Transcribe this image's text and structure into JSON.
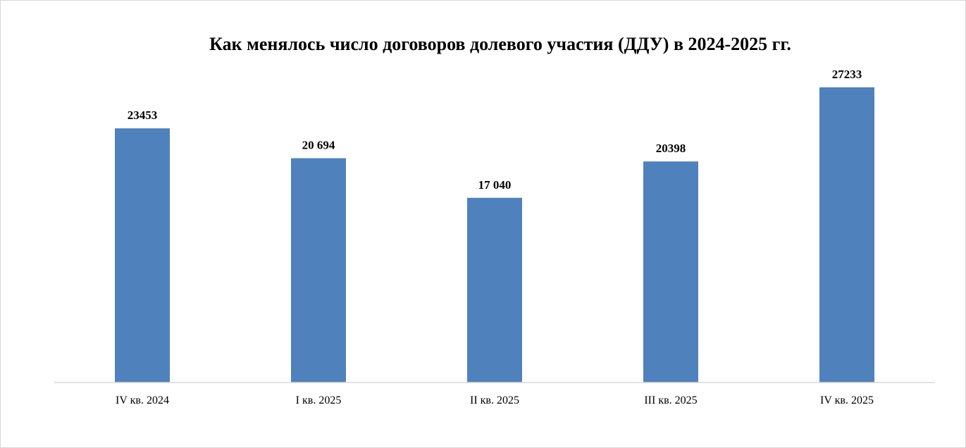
{
  "chart_data": {
    "type": "bar",
    "title": "Как менялось число договоров долевого участия (ДДУ) в 2024-2025 гг.",
    "xlabel": "",
    "ylabel": "",
    "categories": [
      "IV кв. 2024",
      "I кв. 2025",
      "II кв. 2025",
      "III кв. 2025",
      "IV кв. 2025"
    ],
    "values": [
      23453,
      20694,
      17040,
      20398,
      27233
    ],
    "value_labels": [
      "23453",
      "20 694",
      "17 040",
      "20398",
      "27233"
    ],
    "ylim": [
      0,
      28000
    ],
    "grid": false,
    "legend": "none",
    "bar_color": "#4f81bd",
    "axis_color": "#d9d9d9"
  }
}
